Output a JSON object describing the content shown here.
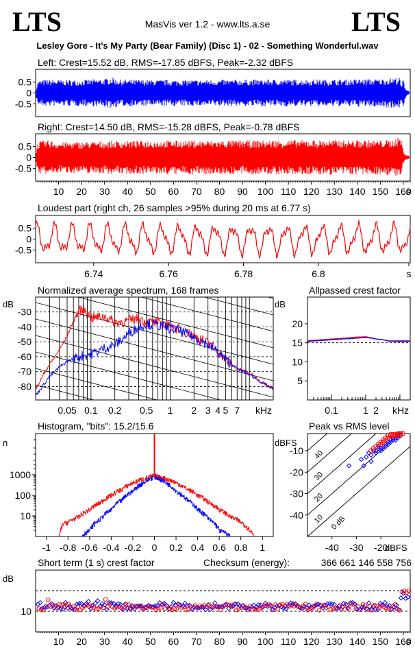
{
  "header": {
    "logo_left": "LTS",
    "logo_right": "LTS",
    "app_title": "MasVis ver 1.2 - www.lts.a.se",
    "file_title": "Lesley Gore - It's My Party (Bear Family) (Disc 1) - 02 - Something Wonderful.wav"
  },
  "colors": {
    "left": "#0000ff",
    "right": "#ff0000",
    "grid": "#000000"
  },
  "chart_data": [
    {
      "id": "left_waveform",
      "type": "area",
      "title": "Left: Crest=15.52 dB, RMS=-17.85 dBFS, Peak=-2.32 dBFS",
      "channel": "left",
      "ylim": [
        -1,
        1
      ],
      "yticks": [
        "0.5",
        "0",
        "-0.5"
      ],
      "xlim": [
        0,
        163
      ],
      "peak_envelope": [
        [
          0,
          0.12
        ],
        [
          1,
          0.55
        ],
        [
          3,
          0.6
        ],
        [
          6,
          0.62
        ],
        [
          10,
          0.6
        ],
        [
          20,
          0.6
        ],
        [
          30,
          0.65
        ],
        [
          33,
          0.72
        ],
        [
          36,
          0.62
        ],
        [
          50,
          0.6
        ],
        [
          70,
          0.6
        ],
        [
          100,
          0.62
        ],
        [
          130,
          0.62
        ],
        [
          150,
          0.65
        ],
        [
          157,
          0.7
        ],
        [
          158.5,
          0.7
        ],
        [
          159,
          0.3
        ],
        [
          160,
          0.65
        ],
        [
          161,
          0.2
        ],
        [
          163,
          0.05
        ]
      ]
    },
    {
      "id": "right_waveform",
      "type": "area",
      "title": "Right: Crest=14.50 dB, RMS=-15.28 dBFS, Peak=-0.78 dBFS",
      "channel": "right",
      "ylim": [
        -1,
        1
      ],
      "yticks": [
        "0.5",
        "0",
        "-0.5"
      ],
      "xlim": [
        0,
        163
      ],
      "xticks": [
        "10",
        "20",
        "30",
        "40",
        "50",
        "60",
        "70",
        "80",
        "90",
        "100",
        "110",
        "120",
        "130",
        "140",
        "150",
        "160",
        "s"
      ],
      "peak_envelope": [
        [
          0,
          0.2
        ],
        [
          1,
          0.7
        ],
        [
          2,
          0.75
        ],
        [
          6,
          0.8
        ],
        [
          10,
          0.7
        ],
        [
          20,
          0.72
        ],
        [
          30,
          0.75
        ],
        [
          50,
          0.78
        ],
        [
          80,
          0.78
        ],
        [
          110,
          0.8
        ],
        [
          140,
          0.8
        ],
        [
          155,
          0.8
        ],
        [
          157,
          0.9
        ],
        [
          159,
          0.95
        ],
        [
          160,
          0.3
        ],
        [
          161,
          0.15
        ],
        [
          163,
          0.05
        ]
      ]
    },
    {
      "id": "loudest_part",
      "type": "line",
      "title": "Loudest part (right ch, 26 samples >95% during 20 ms at 6.77 s)",
      "channel": "right",
      "ylim": [
        -1,
        1
      ],
      "yticks": [
        "0.5",
        "0",
        "-0.5"
      ],
      "xlim": [
        6.7245,
        6.8245
      ],
      "xticks": [
        "6.74",
        "6.76",
        "6.78",
        "6.8",
        "s"
      ]
    },
    {
      "id": "spectrum",
      "type": "line",
      "title": "Normalized average spectrum, 168 frames",
      "ylabel": "dB",
      "yticks": [
        "-30",
        "-40",
        "-50",
        "-60",
        "-70",
        "-80"
      ],
      "ylim": [
        -89,
        -20
      ],
      "xticks": [
        "0.05",
        "0.1",
        "0.2",
        "0.5",
        "1",
        "2",
        "3",
        "4",
        "5",
        "7",
        "kHz"
      ],
      "xlim": [
        0.02,
        20
      ],
      "xscale": "log",
      "series": [
        {
          "channel": "right",
          "points": [
            [
              0.02,
              -82
            ],
            [
              0.025,
              -72
            ],
            [
              0.03,
              -65
            ],
            [
              0.04,
              -55
            ],
            [
              0.05,
              -46
            ],
            [
              0.06,
              -36
            ],
            [
              0.07,
              -30
            ],
            [
              0.08,
              -28
            ],
            [
              0.1,
              -34
            ],
            [
              0.15,
              -33
            ],
            [
              0.2,
              -37
            ],
            [
              0.3,
              -36
            ],
            [
              0.4,
              -34
            ],
            [
              0.5,
              -37
            ],
            [
              0.7,
              -37
            ],
            [
              1,
              -40
            ],
            [
              1.5,
              -43
            ],
            [
              2,
              -46
            ],
            [
              3,
              -51
            ],
            [
              4,
              -56
            ],
            [
              5,
              -62
            ],
            [
              7,
              -68
            ],
            [
              10,
              -71
            ],
            [
              14,
              -77
            ],
            [
              20,
              -81
            ]
          ]
        },
        {
          "channel": "left",
          "points": [
            [
              0.02,
              -86
            ],
            [
              0.025,
              -79
            ],
            [
              0.03,
              -73
            ],
            [
              0.04,
              -67
            ],
            [
              0.05,
              -63
            ],
            [
              0.07,
              -60
            ],
            [
              0.1,
              -58
            ],
            [
              0.15,
              -54
            ],
            [
              0.2,
              -52
            ],
            [
              0.3,
              -44
            ],
            [
              0.4,
              -40
            ],
            [
              0.5,
              -38
            ],
            [
              0.7,
              -39
            ],
            [
              1,
              -41
            ],
            [
              1.5,
              -44
            ],
            [
              2,
              -47
            ],
            [
              3,
              -52
            ],
            [
              4,
              -57
            ],
            [
              5,
              -62
            ],
            [
              7,
              -68
            ],
            [
              10,
              -72
            ],
            [
              14,
              -77
            ],
            [
              20,
              -82
            ]
          ]
        }
      ]
    },
    {
      "id": "allpassed_crest",
      "type": "line",
      "title": "Allpassed crest factor",
      "ylabel": "dB",
      "yticks": [
        "20",
        "15",
        "10",
        "5"
      ],
      "ylim": [
        0,
        27
      ],
      "xticks": [
        "0.1",
        "1",
        "2",
        "kHz"
      ],
      "xlim": [
        0.02,
        20
      ],
      "xscale": "log",
      "reference_line": 15,
      "series": [
        {
          "channel": "right",
          "points": [
            [
              0.02,
              15.6
            ],
            [
              0.05,
              15.8
            ],
            [
              0.1,
              16.0
            ],
            [
              0.2,
              16.2
            ],
            [
              0.5,
              16.5
            ],
            [
              1,
              16.6
            ],
            [
              2,
              16.0
            ],
            [
              5,
              15.4
            ],
            [
              10,
              15.3
            ],
            [
              20,
              15.3
            ]
          ]
        },
        {
          "channel": "left",
          "points": [
            [
              0.02,
              15.4
            ],
            [
              0.05,
              15.6
            ],
            [
              0.1,
              15.8
            ],
            [
              0.2,
              16.0
            ],
            [
              0.5,
              16.2
            ],
            [
              1,
              16.4
            ],
            [
              2,
              16.0
            ],
            [
              5,
              15.5
            ],
            [
              10,
              15.5
            ],
            [
              20,
              15.5
            ]
          ]
        }
      ]
    },
    {
      "id": "histogram",
      "type": "line",
      "title": "Histogram, \"bits\": 15.2/15.6",
      "ylabel": "n",
      "yticks": [
        "1000",
        "100",
        "10"
      ],
      "yscale": "log",
      "ylim": [
        1,
        100000
      ],
      "xticks": [
        "-1",
        "-0.8",
        "-0.6",
        "-0.4",
        "-0.2",
        "0",
        "0.2",
        "0.4",
        "0.6",
        "0.8",
        "1"
      ],
      "xlim": [
        -1.1,
        1.1
      ],
      "center_spike": 100000,
      "series": [
        {
          "channel": "right",
          "points": [
            [
              -0.88,
              1
            ],
            [
              -0.85,
              4
            ],
            [
              -0.8,
              5
            ],
            [
              -0.7,
              9
            ],
            [
              -0.6,
              20
            ],
            [
              -0.5,
              45
            ],
            [
              -0.4,
              100
            ],
            [
              -0.3,
              200
            ],
            [
              -0.2,
              400
            ],
            [
              -0.1,
              650
            ],
            [
              0,
              900
            ],
            [
              0.1,
              650
            ],
            [
              0.2,
              400
            ],
            [
              0.3,
              200
            ],
            [
              0.4,
              100
            ],
            [
              0.5,
              45
            ],
            [
              0.6,
              20
            ],
            [
              0.7,
              9
            ],
            [
              0.8,
              5
            ],
            [
              0.85,
              3
            ],
            [
              0.92,
              1
            ]
          ]
        },
        {
          "channel": "left",
          "points": [
            [
              -0.68,
              1
            ],
            [
              -0.6,
              2
            ],
            [
              -0.5,
              7
            ],
            [
              -0.4,
              20
            ],
            [
              -0.3,
              60
            ],
            [
              -0.2,
              160
            ],
            [
              -0.1,
              420
            ],
            [
              0,
              800
            ],
            [
              0.1,
              420
            ],
            [
              0.2,
              160
            ],
            [
              0.3,
              60
            ],
            [
              0.4,
              20
            ],
            [
              0.5,
              7
            ],
            [
              0.6,
              2
            ],
            [
              0.7,
              1
            ]
          ]
        }
      ]
    },
    {
      "id": "peak_vs_rms",
      "type": "scatter",
      "title": "Peak vs RMS level",
      "ylabel": "dBFS",
      "xlabel": "dBFS",
      "yticks": [
        "-10",
        "-20",
        "-30",
        "-40"
      ],
      "xticks": [
        "-40",
        "-30",
        "-20"
      ],
      "xlim": [
        -50,
        -8
      ],
      "ylim": [
        -50,
        -2
      ],
      "diagonals": [
        "40",
        "30",
        "20",
        "10",
        "0 dB"
      ],
      "series": [
        {
          "channel": "left",
          "points": [
            [
              -28,
              -14
            ],
            [
              -26,
              -13
            ],
            [
              -25,
              -11
            ],
            [
              -24,
              -12
            ],
            [
              -23,
              -10
            ],
            [
              -22,
              -10
            ],
            [
              -22,
              -11
            ],
            [
              -21,
              -9
            ],
            [
              -21,
              -8
            ],
            [
              -20,
              -9
            ],
            [
              -20,
              -10
            ],
            [
              -19,
              -8
            ],
            [
              -19,
              -9
            ],
            [
              -18,
              -7
            ],
            [
              -18,
              -8
            ],
            [
              -17,
              -7
            ],
            [
              -17,
              -6
            ],
            [
              -16,
              -6
            ],
            [
              -16,
              -5
            ],
            [
              -15,
              -5
            ],
            [
              -15,
              -4
            ],
            [
              -14,
              -5
            ],
            [
              -14,
              -4
            ],
            [
              -13,
              -4
            ],
            [
              -13,
              -3
            ],
            [
              -12,
              -3
            ],
            [
              -24,
              -15
            ],
            [
              -27,
              -17
            ],
            [
              -33,
              -17
            ]
          ]
        },
        {
          "channel": "right",
          "points": [
            [
              -22,
              -8
            ],
            [
              -21,
              -7
            ],
            [
              -20,
              -7
            ],
            [
              -20,
              -6
            ],
            [
              -19,
              -6
            ],
            [
              -19,
              -5
            ],
            [
              -18,
              -5
            ],
            [
              -18,
              -4
            ],
            [
              -17,
              -4
            ],
            [
              -17,
              -3
            ],
            [
              -16,
              -3
            ],
            [
              -16,
              -2.5
            ],
            [
              -15,
              -3
            ],
            [
              -15,
              -2.5
            ],
            [
              -14,
              -2.5
            ],
            [
              -14,
              -3
            ],
            [
              -13,
              -2.5
            ],
            [
              -13,
              -2
            ],
            [
              -12,
              -2.5
            ],
            [
              -12,
              -2
            ],
            [
              -11,
              -2
            ],
            [
              -23,
              -9
            ],
            [
              -24,
              -10
            ]
          ]
        }
      ]
    },
    {
      "id": "short_term_crest",
      "type": "scatter",
      "title": "Short term (1 s) crest factor",
      "checksum_label": "Checksum (energy):",
      "checksum_value": "366 661 146 558 756",
      "ylabel": "dB",
      "yticks": [
        "10"
      ],
      "ylim": [
        0,
        30
      ],
      "xlim": [
        0,
        163
      ],
      "xticks": [
        "10",
        "20",
        "30",
        "40",
        "50",
        "60",
        "70",
        "80",
        "90",
        "100",
        "110",
        "120",
        "130",
        "140",
        "150",
        "160",
        "s"
      ],
      "reference_lines": [
        10,
        20
      ]
    }
  ]
}
